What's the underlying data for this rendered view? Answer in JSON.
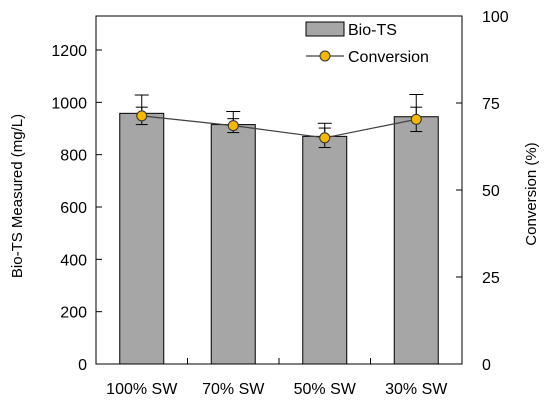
{
  "chart_data": {
    "type": "bar",
    "categories": [
      "100% SW",
      "70% SW",
      "50% SW",
      "30% SW"
    ],
    "series": [
      {
        "name": "Bio-TS",
        "type": "bar",
        "axis": "left",
        "values": [
          958,
          915,
          870,
          945
        ],
        "error": [
          70,
          50,
          50,
          85
        ],
        "color": "#a6a6a6"
      },
      {
        "name": "Conversion",
        "type": "line",
        "axis": "right",
        "values": [
          71.3,
          68.5,
          65.0,
          70.3
        ],
        "error": [
          2.5,
          2.0,
          2.8,
          3.5
        ],
        "marker_color": "#f5b800",
        "line_color": "#404040"
      }
    ],
    "ylabel": "Bio-TS Measured  (mg/L)",
    "ylim": [
      0,
      1330
    ],
    "yticks": [
      0,
      200,
      400,
      600,
      800,
      1000,
      1200
    ],
    "y2label": "Conversion  (%)",
    "y2lim": [
      0,
      100
    ],
    "y2ticks": [
      0,
      25,
      50,
      75,
      100
    ],
    "legend_position": "top-right",
    "grid": false
  }
}
